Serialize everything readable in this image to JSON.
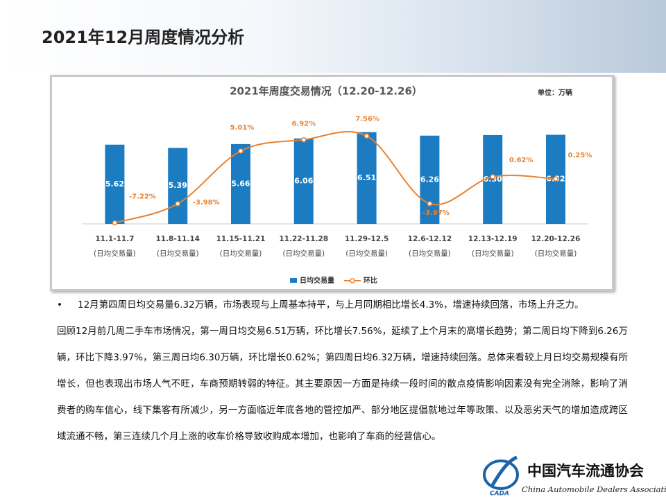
{
  "slide_title": "2021年12月周度情况分析",
  "chart_data": {
    "type": "bar-line",
    "title": "2021年周度交易情况（12.20-12.26）",
    "unit_label": "单位：万辆",
    "categories": [
      "11.1-11.7",
      "11.8-11.14",
      "11.15-11.21",
      "11.22-11.28",
      "11.29-12.5",
      "12.6-12.12",
      "12.13-12.19",
      "12.20-12.26"
    ],
    "category_sublabel": "(日均交易量)",
    "ylim": [
      0,
      9
    ],
    "y2lim": [
      -7.4,
      14.2
    ],
    "series": [
      {
        "name": "日均交易量",
        "type": "bar",
        "color": "#1c7cc2",
        "values": [
          5.62,
          5.39,
          5.66,
          6.06,
          6.51,
          6.26,
          6.3,
          6.32
        ],
        "value_labels": [
          "5.62",
          "5.39",
          "5.66",
          "6.06",
          "6.51",
          "6.26",
          "6.30",
          "6.32"
        ]
      },
      {
        "name": "环比",
        "type": "line",
        "axis": "y2",
        "color": "#e8822f",
        "values": [
          -7.22,
          -3.98,
          5.01,
          6.92,
          7.56,
          -3.97,
          0.62,
          0.25
        ],
        "value_labels": [
          "-7.22%",
          "-3.98%",
          "5.01%",
          "6.92%",
          "7.56%",
          "-3.97%",
          "0.62%",
          "0.25%"
        ]
      }
    ],
    "legend": "bottom"
  },
  "paragraph": {
    "bullet": "•",
    "lines": [
      "12月第四周日均交易量6.32万辆，市场表现与上周基本持平，与上月同期相比增长4.3%，增速持续回落，市场上升乏力。",
      "回顾12月前几周二手车市场情况，第一周日均交易6.51万辆，环比增长7.56%，延续了上个月末的高增长趋势；第二周日均下降到6.26万辆，环比下降3.97%，第三周日均6.30万辆，环比增长0.62%；第四周日均6.32万辆，增速持续回落。总体来看较上月日均交易规模有所增长，但也表现出市场人气不旺，车商预期转弱的特征。其主要原因一方面是持续一段时间的散点疫情影响因素没有完全消除，影响了消费者的购车信心，线下集客有所减少，另一方面临近年底各地的管控加严、部分地区提倡就地过年等政策、以及恶劣天气的增加造成跨区域流通不畅，第三连续几个月上涨的收车价格导致收购成本增加，也影响了车商的经营信心。"
    ]
  },
  "logo": {
    "mark": "CADA",
    "name_cn": "中国汽车流通协会",
    "name_en": "China Automobile Dealers Association"
  }
}
